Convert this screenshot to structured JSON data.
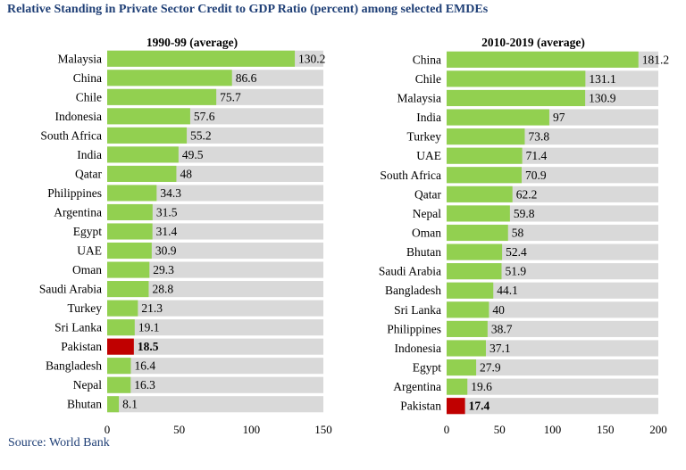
{
  "title": "Relative Standing in Private Sector Credit to GDP Ratio (percent) among selected EMDEs",
  "source": "Source: World Bank",
  "colors": {
    "bar": "#92d050",
    "highlight": "#c00000",
    "track": "#d9d9d9",
    "title": "#1f3f76"
  },
  "chart_data": [
    {
      "type": "bar",
      "orientation": "horizontal",
      "title": "1990-99 (average)",
      "categories": [
        "Malaysia",
        "China",
        "Chile",
        "Indonesia",
        "South Africa",
        "India",
        "Qatar",
        "Philippines",
        "Argentina",
        "Egypt",
        "UAE",
        "Oman",
        "Saudi Arabia",
        "Turkey",
        "Sri Lanka",
        "Pakistan",
        "Bangladesh",
        "Nepal",
        "Bhutan"
      ],
      "values": [
        130.2,
        86.6,
        75.7,
        57.6,
        55.2,
        49.5,
        48,
        34.3,
        31.5,
        31.4,
        30.9,
        29.3,
        28.8,
        21.3,
        19.1,
        18.5,
        16.4,
        16.3,
        8.1
      ],
      "value_labels": [
        "130.2",
        "86.6",
        "75.7",
        "57.6",
        "55.2",
        "49.5",
        "48",
        "34.3",
        "31.5",
        "31.4",
        "30.9",
        "29.3",
        "28.8",
        "21.3",
        "19.1",
        "18.5",
        "16.4",
        "16.3",
        "8.1"
      ],
      "highlight": "Pakistan",
      "xlim": [
        0,
        150
      ],
      "xticks": [
        0,
        50,
        100,
        150
      ]
    },
    {
      "type": "bar",
      "orientation": "horizontal",
      "title": "2010-2019 (average)",
      "categories": [
        "China",
        "Chile",
        "Malaysia",
        "India",
        "Turkey",
        "UAE",
        "South Africa",
        "Qatar",
        "Nepal",
        "Oman",
        "Bhutan",
        "Saudi Arabia",
        "Bangladesh",
        "Sri Lanka",
        "Philippines",
        "Indonesia",
        "Egypt",
        "Argentina",
        "Pakistan"
      ],
      "values": [
        181.2,
        131.1,
        130.9,
        97,
        73.8,
        71.4,
        70.9,
        62.2,
        59.8,
        58,
        52.4,
        51.9,
        44.1,
        40,
        38.7,
        37.1,
        27.9,
        19.6,
        17.4
      ],
      "value_labels": [
        "181.2",
        "131.1",
        "130.9",
        "97",
        "73.8",
        "71.4",
        "70.9",
        "62.2",
        "59.8",
        "58",
        "52.4",
        "51.9",
        "44.1",
        "40",
        "38.7",
        "37.1",
        "27.9",
        "19.6",
        "17.4"
      ],
      "highlight": "Pakistan",
      "xlim": [
        0,
        200
      ],
      "xticks": [
        0,
        50,
        100,
        150,
        200
      ]
    }
  ]
}
